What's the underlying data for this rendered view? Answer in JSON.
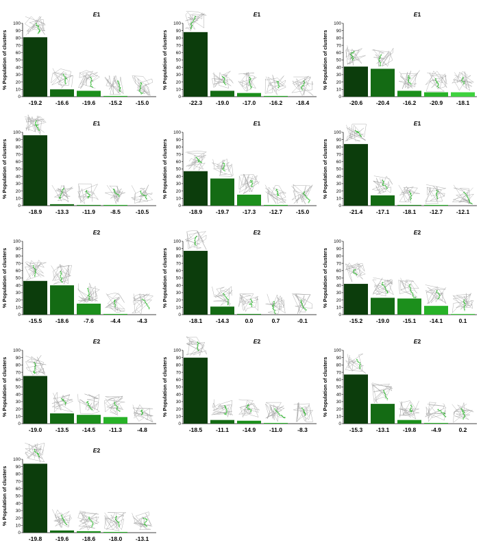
{
  "colors": {
    "bar_levels": [
      "#0c3d0c",
      "#146b14",
      "#1c8f1c",
      "#27b227",
      "#3fd23f"
    ],
    "axis": "#000000",
    "ligand": "#33bb33",
    "protein": "#9a9a9a"
  },
  "thumbnail_icon": "protein-ligand-pose-icon",
  "chart_data": [
    {
      "type": "bar",
      "title_italic": "E",
      "title_num": "1",
      "ylabel": "% Population of clusters",
      "ylim": [
        0,
        100
      ],
      "yticks": [
        0,
        10,
        20,
        30,
        40,
        50,
        60,
        70,
        80,
        90,
        100
      ],
      "grid": false,
      "categories": [
        "-19.2",
        "-16.6",
        "-19.6",
        "-15.2",
        "-15.0"
      ],
      "values": [
        81,
        10,
        8,
        1,
        0
      ]
    },
    {
      "type": "bar",
      "title_italic": "E",
      "title_num": "1",
      "ylabel": "% Population of clusters",
      "ylim": [
        0,
        100
      ],
      "yticks": [
        0,
        10,
        20,
        30,
        40,
        50,
        60,
        70,
        80,
        90,
        100
      ],
      "grid": false,
      "categories": [
        "-22.3",
        "-19.0",
        "-17.0",
        "-16.2",
        "-18.4"
      ],
      "values": [
        88,
        8,
        5,
        1,
        0
      ]
    },
    {
      "type": "bar",
      "title_italic": "E",
      "title_num": "1",
      "ylabel": "% Population of clusters",
      "ylim": [
        0,
        100
      ],
      "yticks": [
        0,
        10,
        20,
        30,
        40,
        50,
        60,
        70,
        80,
        90,
        100
      ],
      "grid": false,
      "categories": [
        "-20.6",
        "-20.4",
        "-16.2",
        "-20.9",
        "-18.1"
      ],
      "values": [
        41,
        38,
        8,
        6,
        6
      ]
    },
    {
      "type": "bar",
      "title_italic": "E",
      "title_num": "1",
      "ylabel": "% Population of clusters",
      "ylim": [
        0,
        100
      ],
      "yticks": [
        0,
        10,
        20,
        30,
        40,
        50,
        60,
        70,
        80,
        90,
        100
      ],
      "grid": false,
      "categories": [
        "-18.9",
        "-13.3",
        "-11.9",
        "-8.5",
        "-10.5"
      ],
      "values": [
        96,
        2,
        1,
        1,
        0
      ]
    },
    {
      "type": "bar",
      "title_italic": "E",
      "title_num": "1",
      "ylabel": "% Population of clusters",
      "ylim": [
        0,
        100
      ],
      "yticks": [
        0,
        10,
        20,
        30,
        40,
        50,
        60,
        70,
        80,
        90,
        100
      ],
      "grid": false,
      "categories": [
        "-18.9",
        "-19.7",
        "-17.3",
        "-12.7",
        "-15.0"
      ],
      "values": [
        47,
        37,
        15,
        1,
        0
      ]
    },
    {
      "type": "bar",
      "title_italic": "E",
      "title_num": "1",
      "ylabel": "% Population of clusters",
      "ylim": [
        0,
        100
      ],
      "yticks": [
        0,
        10,
        20,
        30,
        40,
        50,
        60,
        70,
        80,
        90,
        100
      ],
      "grid": false,
      "categories": [
        "-21.4",
        "-17.1",
        "-18.1",
        "-12.7",
        "-12.1"
      ],
      "values": [
        84,
        14,
        1,
        1,
        0
      ]
    },
    {
      "type": "bar",
      "title_italic": "E",
      "title_num": "2",
      "ylabel": "% Population of clusters",
      "ylim": [
        0,
        100
      ],
      "yticks": [
        0,
        10,
        20,
        30,
        40,
        50,
        60,
        70,
        80,
        90,
        100
      ],
      "grid": false,
      "categories": [
        "-15.5",
        "-18.6",
        "-7.6",
        "-4.4",
        "-4.3"
      ],
      "values": [
        46,
        40,
        15,
        1,
        0
      ]
    },
    {
      "type": "bar",
      "title_italic": "E",
      "title_num": "2",
      "ylabel": "% Population of clusters",
      "ylim": [
        0,
        100
      ],
      "yticks": [
        0,
        10,
        20,
        30,
        40,
        50,
        60,
        70,
        80,
        90,
        100
      ],
      "grid": false,
      "categories": [
        "-18.1",
        "-14.3",
        "0.0",
        "0.7",
        "-0.1"
      ],
      "values": [
        87,
        11,
        1,
        0,
        0
      ]
    },
    {
      "type": "bar",
      "title_italic": "E",
      "title_num": "2",
      "ylabel": "% Population of clusters",
      "ylim": [
        0,
        100
      ],
      "yticks": [
        0,
        10,
        20,
        30,
        40,
        50,
        60,
        70,
        80,
        90,
        100
      ],
      "grid": false,
      "categories": [
        "-15.2",
        "-19.0",
        "-15.1",
        "-14.1",
        "0.1"
      ],
      "values": [
        42,
        23,
        22,
        12,
        1
      ]
    },
    {
      "type": "bar",
      "title_italic": "E",
      "title_num": "2",
      "ylabel": "% Population of clusters",
      "ylim": [
        0,
        100
      ],
      "yticks": [
        0,
        10,
        20,
        30,
        40,
        50,
        60,
        70,
        80,
        90,
        100
      ],
      "grid": false,
      "categories": [
        "-19.0",
        "-13.5",
        "-14.5",
        "-11.3",
        "-4.8"
      ],
      "values": [
        65,
        14,
        12,
        9,
        0
      ]
    },
    {
      "type": "bar",
      "title_italic": "E",
      "title_num": "2",
      "ylabel": "% Population of clusters",
      "ylim": [
        0,
        100
      ],
      "yticks": [
        0,
        10,
        20,
        30,
        40,
        50,
        60,
        70,
        80,
        90,
        100
      ],
      "grid": false,
      "categories": [
        "-18.5",
        "-11.1",
        "-14.9",
        "-11.0",
        "-8.3"
      ],
      "values": [
        90,
        5,
        4,
        1,
        0
      ]
    },
    {
      "type": "bar",
      "title_italic": "E",
      "title_num": "2",
      "ylabel": "% Population of clusters",
      "ylim": [
        0,
        100
      ],
      "yticks": [
        0,
        10,
        20,
        30,
        40,
        50,
        60,
        70,
        80,
        90,
        100
      ],
      "grid": false,
      "categories": [
        "-15.3",
        "-13.1",
        "-19.8",
        "-4.9",
        "0.2"
      ],
      "values": [
        67,
        27,
        5,
        1,
        0
      ]
    },
    {
      "type": "bar",
      "title_italic": "E",
      "title_num": "2",
      "ylabel": "% Population of clusters",
      "ylim": [
        0,
        100
      ],
      "yticks": [
        0,
        10,
        20,
        30,
        40,
        50,
        60,
        70,
        80,
        90,
        100
      ],
      "grid": false,
      "categories": [
        "-19.8",
        "-19.6",
        "-18.6",
        "-18.0",
        "-13.1"
      ],
      "values": [
        94,
        3,
        2,
        1,
        0
      ]
    }
  ]
}
